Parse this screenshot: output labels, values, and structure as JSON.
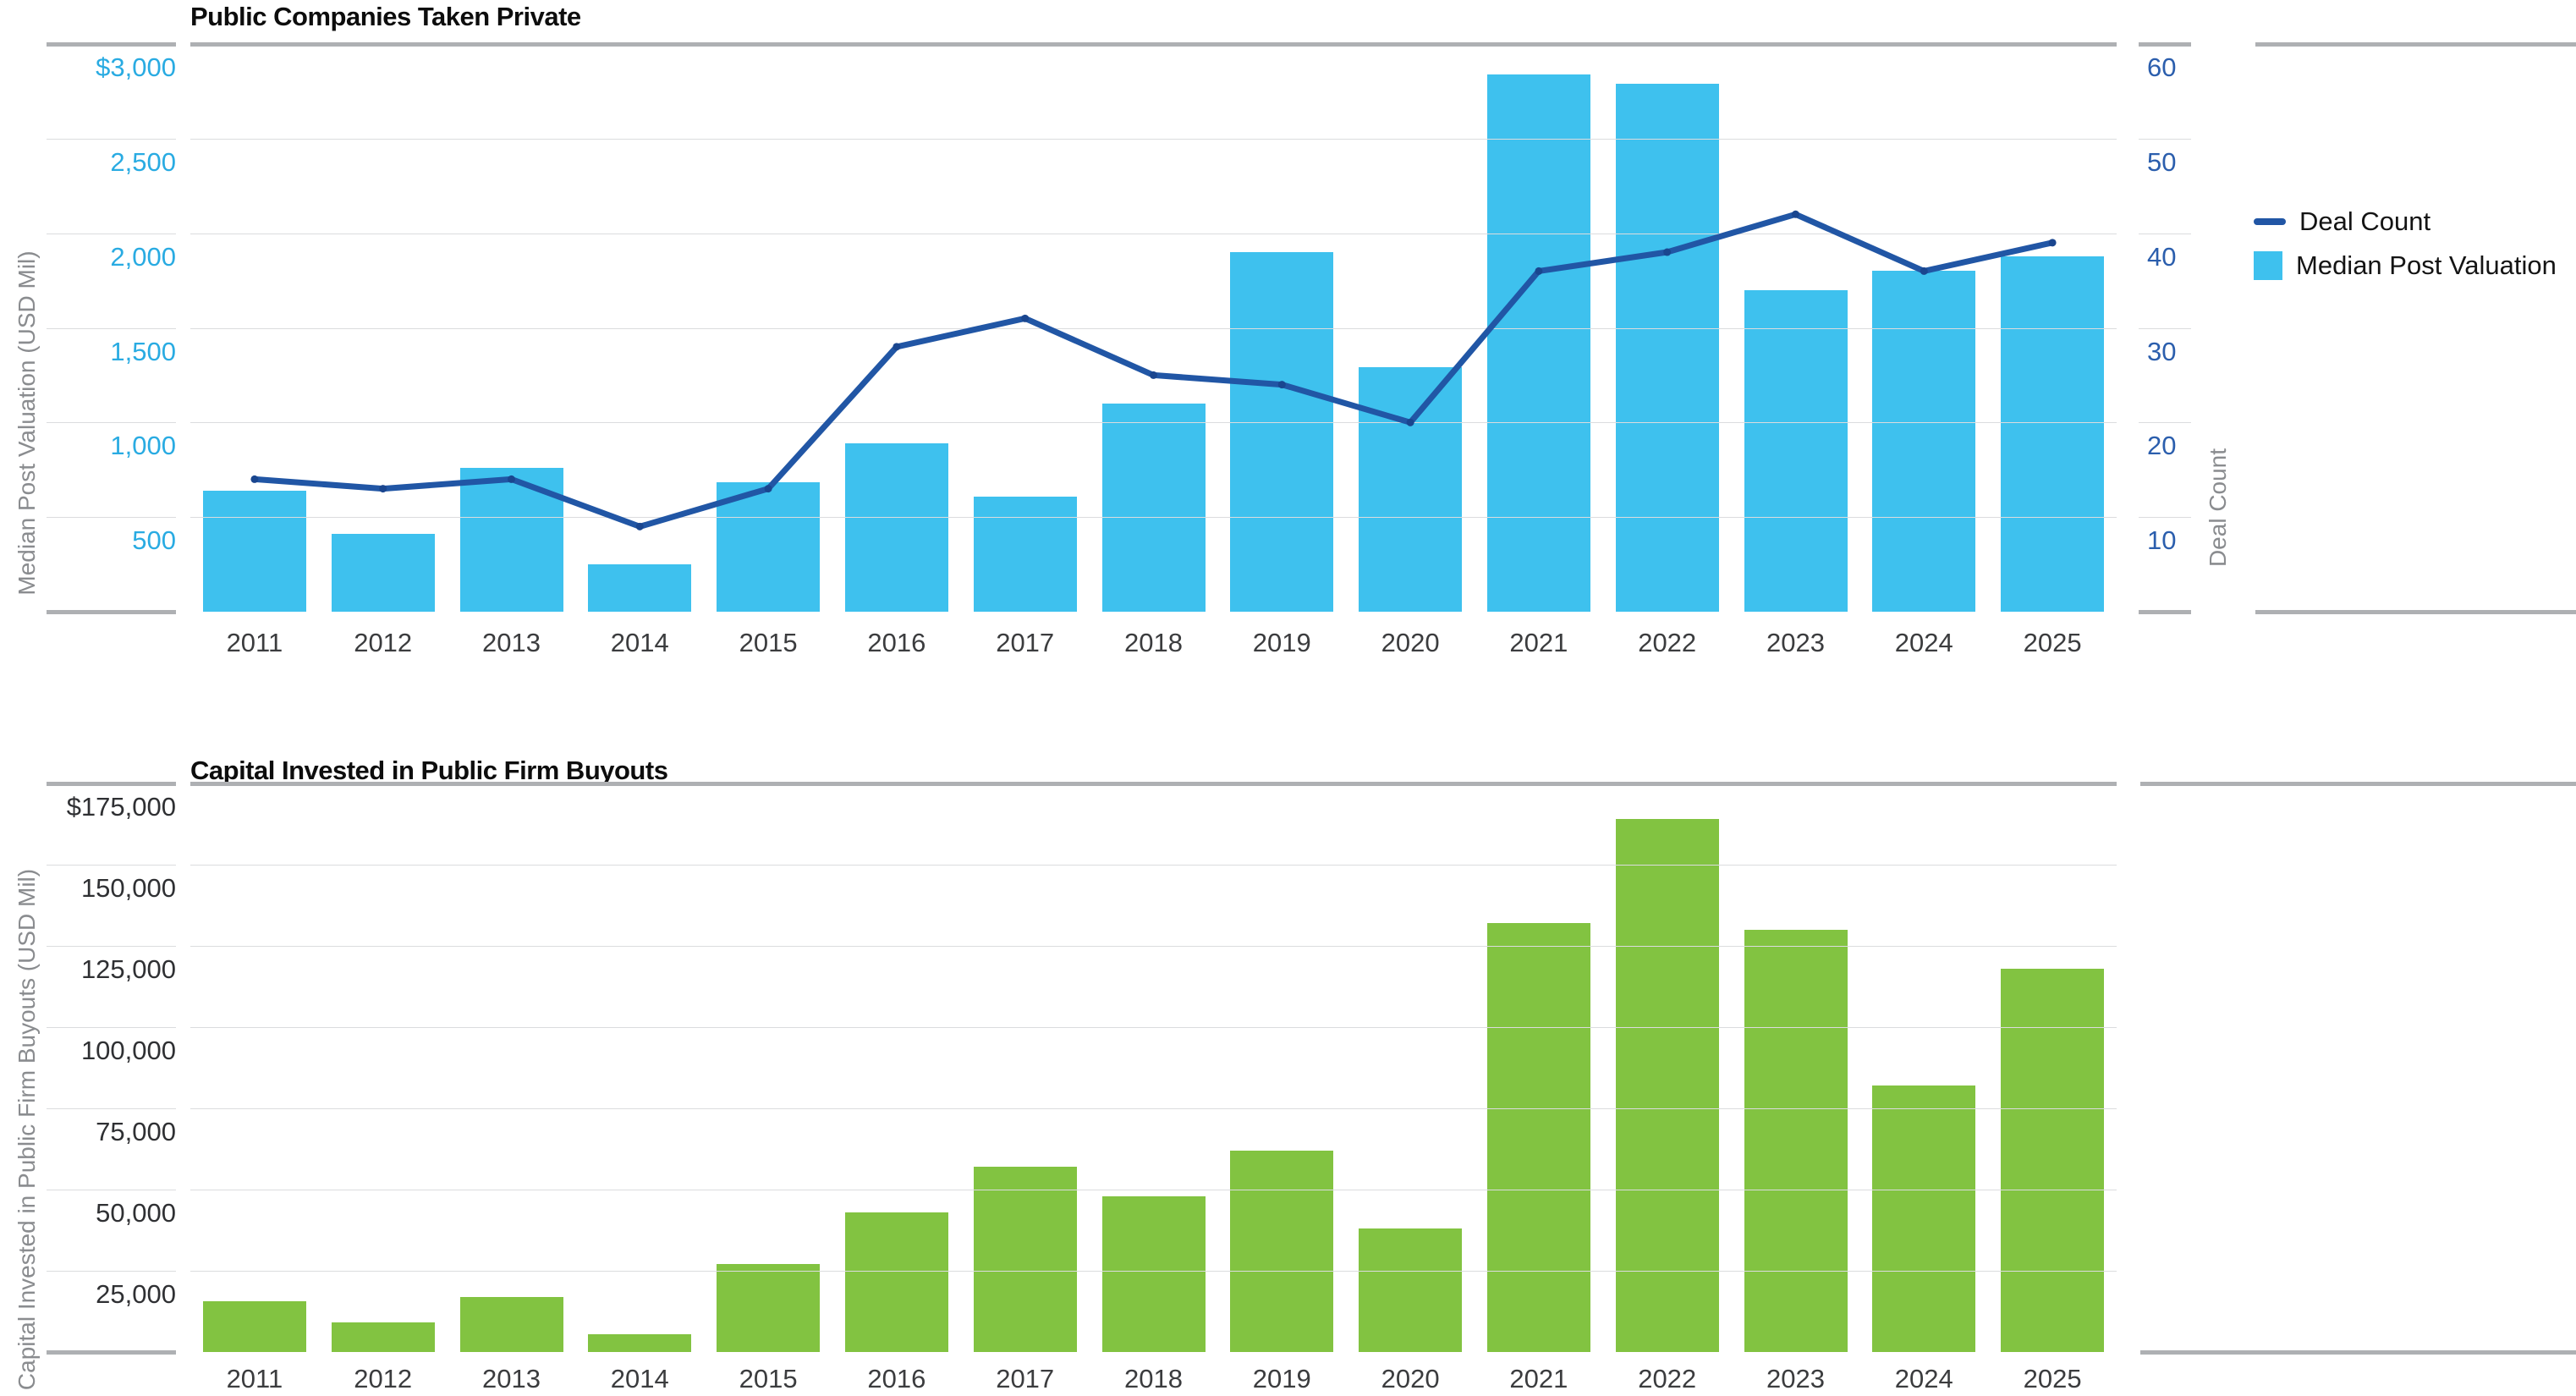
{
  "chart_data": [
    {
      "type": "bar",
      "title": "Public Companies Taken Private",
      "categories": [
        "2011",
        "2012",
        "2013",
        "2014",
        "2015",
        "2016",
        "2017",
        "2018",
        "2019",
        "2020",
        "2021",
        "2022",
        "2023",
        "2024",
        "2025"
      ],
      "series": [
        {
          "name": "Median Post Valuation",
          "kind": "bar",
          "axis": "left",
          "color": "#3ec1ee",
          "values": [
            640,
            410,
            760,
            250,
            685,
            890,
            610,
            1100,
            1900,
            1290,
            2840,
            2790,
            1700,
            1800,
            1880
          ]
        },
        {
          "name": "Deal Count",
          "kind": "line",
          "axis": "right",
          "color": "#2156a5",
          "dot_color": "#1a468f",
          "values": [
            14,
            13,
            14,
            9,
            13,
            28,
            31,
            25,
            24,
            20,
            36,
            38,
            42,
            36,
            39
          ]
        }
      ],
      "left_axis": {
        "label": "Median Post Valuation (USD Mil)",
        "max": 3000,
        "min": 0,
        "tick_color": "#29abe2",
        "ticks": [
          {
            "value": 3000,
            "label": "$3,000"
          },
          {
            "value": 2500,
            "label": "2,500"
          },
          {
            "value": 2000,
            "label": "2,000"
          },
          {
            "value": 1500,
            "label": "1,500"
          },
          {
            "value": 1000,
            "label": "1,000"
          },
          {
            "value": 500,
            "label": "500"
          }
        ]
      },
      "right_axis": {
        "label": "Deal Count",
        "max": 60,
        "min": 0,
        "tick_color": "#2b5ead",
        "ticks": [
          {
            "value": 60,
            "label": "60"
          },
          {
            "value": 50,
            "label": "50"
          },
          {
            "value": 40,
            "label": "40"
          },
          {
            "value": 30,
            "label": "30"
          },
          {
            "value": 20,
            "label": "20"
          },
          {
            "value": 10,
            "label": "10"
          }
        ]
      },
      "legend": [
        {
          "label": "Deal Count",
          "marker": "line",
          "color": "#2156a5"
        },
        {
          "label": "Median Post Valuation",
          "marker": "square",
          "color": "#3ec1ee"
        }
      ],
      "grid": true,
      "legend_position": "right"
    },
    {
      "type": "bar",
      "title": "Capital Invested in Public Firm Buyouts",
      "categories": [
        "2011",
        "2012",
        "2013",
        "2014",
        "2015",
        "2016",
        "2017",
        "2018",
        "2019",
        "2020",
        "2021",
        "2022",
        "2023",
        "2024",
        "2025"
      ],
      "series": [
        {
          "name": "Capital Invested",
          "kind": "bar",
          "axis": "left",
          "color": "#82c341",
          "values": [
            15500,
            9000,
            17000,
            5500,
            27000,
            43000,
            57000,
            48000,
            62000,
            38000,
            132000,
            164000,
            130000,
            82000,
            118000
          ]
        }
      ],
      "left_axis": {
        "label": "Capital Invested in Public Firm Buyouts (USD Mil)",
        "max": 175000,
        "min": 0,
        "tick_color": "#2f3033",
        "ticks": [
          {
            "value": 175000,
            "label": "$175,000"
          },
          {
            "value": 150000,
            "label": "150,000"
          },
          {
            "value": 125000,
            "label": "125,000"
          },
          {
            "value": 100000,
            "label": "100,000"
          },
          {
            "value": 75000,
            "label": "75,000"
          },
          {
            "value": 50000,
            "label": "50,000"
          },
          {
            "value": 25000,
            "label": "25,000"
          }
        ]
      },
      "grid": true
    }
  ]
}
